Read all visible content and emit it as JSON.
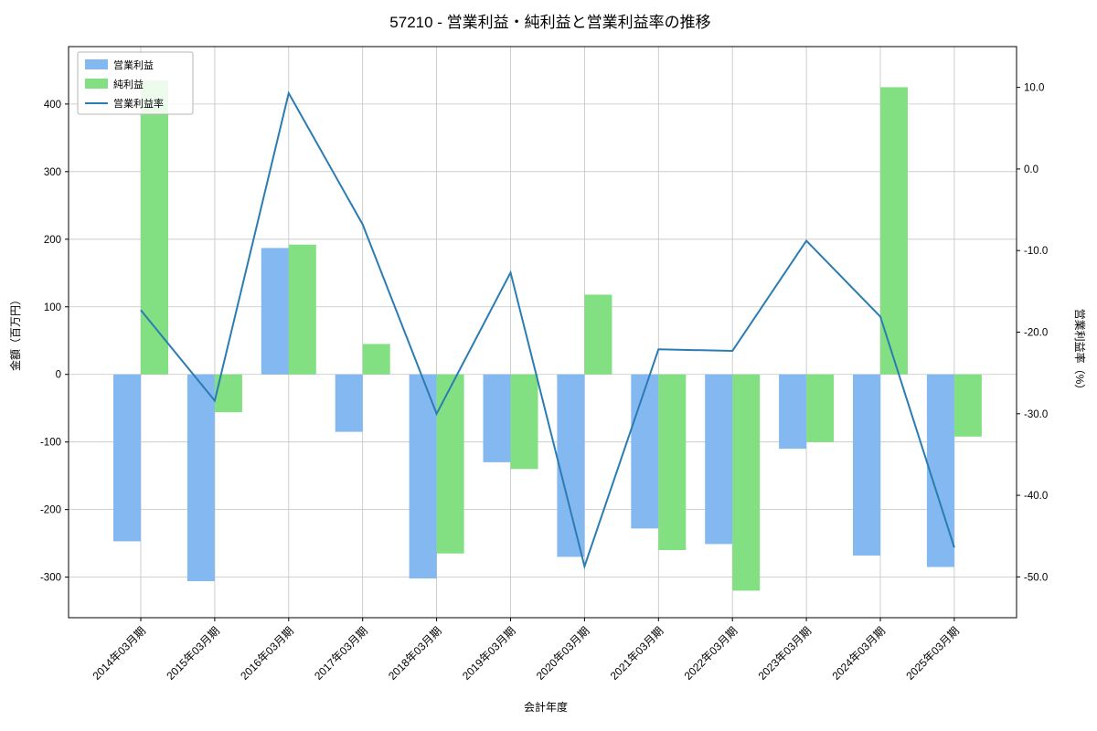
{
  "chart_data": {
    "type": "bar+line",
    "title": "57210 - 営業利益・純利益と営業利益率の推移",
    "xlabel": "会計年度",
    "ylabel_left": "金額（百万円）",
    "ylabel_right": "営業利益率（%）",
    "categories": [
      "2014年03月期",
      "2015年03月期",
      "2016年03月期",
      "2017年03月期",
      "2018年03月期",
      "2019年03月期",
      "2020年03月期",
      "2021年03月期",
      "2022年03月期",
      "2023年03月期",
      "2024年03月期",
      "2025年03月期"
    ],
    "series": [
      {
        "name": "営業利益",
        "type": "bar",
        "axis": "left",
        "color": "#84b8f0",
        "values": [
          -247,
          -306,
          187,
          -85,
          -302,
          -130,
          -270,
          -228,
          -251,
          -110,
          -268,
          -285
        ]
      },
      {
        "name": "純利益",
        "type": "bar",
        "axis": "left",
        "color": "#82e082",
        "values": [
          435,
          -56,
          192,
          45,
          -265,
          -140,
          118,
          -260,
          -320,
          -100,
          425,
          -92
        ]
      },
      {
        "name": "営業利益率",
        "type": "line",
        "axis": "right",
        "color": "#2b7cb3",
        "values": [
          -17.3,
          -28.4,
          9.3,
          -6.8,
          -30.0,
          -12.7,
          -48.7,
          -22.1,
          -22.3,
          -8.8,
          -18.1,
          -46.4
        ]
      }
    ],
    "left_axis": {
      "ticks": [
        "400",
        "300",
        "200",
        "100",
        "0",
        "-100",
        "-200",
        "-300"
      ],
      "lim": [
        -360,
        485
      ]
    },
    "right_axis": {
      "ticks": [
        "10.0",
        "0.0",
        "-10.0",
        "-20.0",
        "-30.0",
        "-40.0",
        "-50.0"
      ],
      "lim": [
        -55,
        15
      ]
    },
    "grid": true,
    "legend_position": "upper left"
  }
}
